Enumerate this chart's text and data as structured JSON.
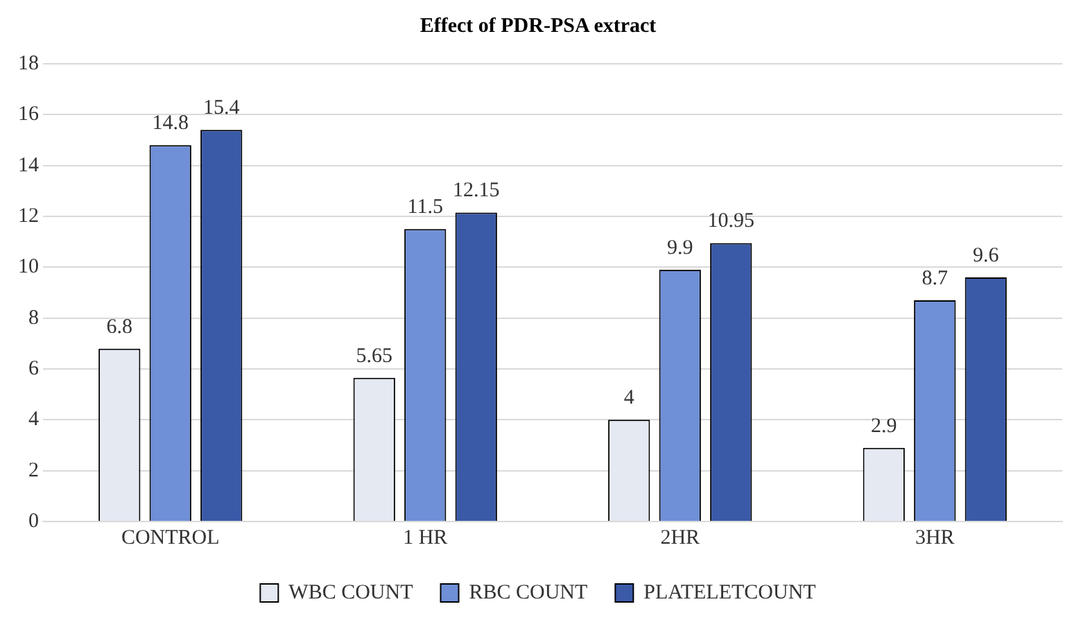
{
  "chart_data": {
    "type": "bar",
    "title": "Effect of PDR-PSA extract",
    "categories": [
      "CONTROL",
      "1 HR",
      "2HR",
      "3HR"
    ],
    "series": [
      {
        "name": "WBC COUNT",
        "color": "#e4e9f2",
        "values": [
          6.8,
          5.65,
          4,
          2.9
        ]
      },
      {
        "name": "RBC COUNT",
        "color": "#6f8fd6",
        "values": [
          14.8,
          11.5,
          9.9,
          8.7
        ]
      },
      {
        "name": "PLATELETCOUNT",
        "color": "#3a5aa8",
        "values": [
          15.4,
          12.15,
          10.95,
          9.6
        ]
      }
    ],
    "ylim": [
      0,
      18
    ],
    "yticks": [
      0,
      2,
      4,
      6,
      8,
      10,
      12,
      14,
      16,
      18
    ],
    "grid": "y",
    "legend": "bottom",
    "data_labels": true
  }
}
